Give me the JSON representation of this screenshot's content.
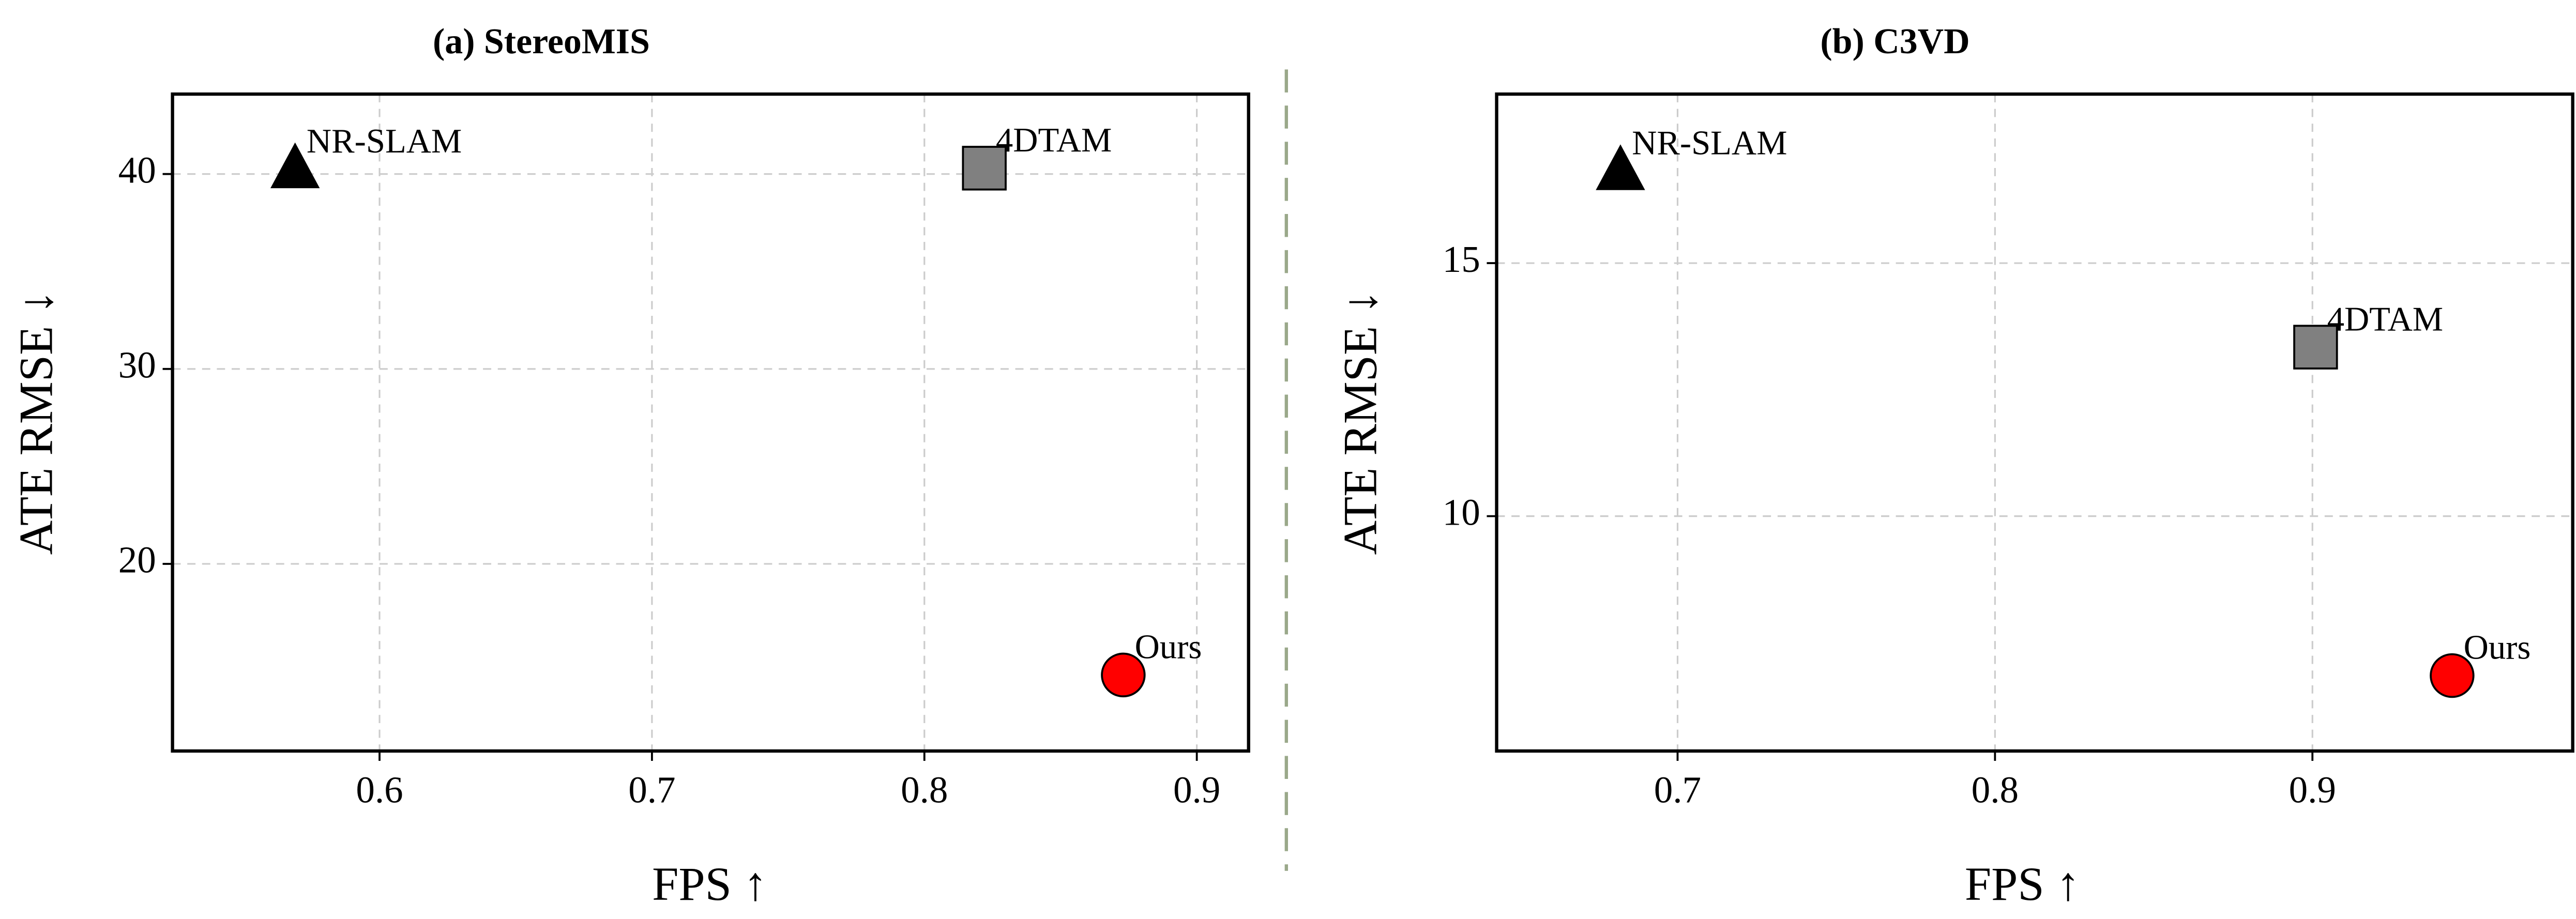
{
  "chart_data": [
    {
      "type": "scatter",
      "title": "(a) StereoMIS",
      "x_label": "FPS ↑",
      "y_label": "ATE RMSE ↓",
      "xlim": [
        0.524,
        0.919
      ],
      "xticks": [
        0.6,
        0.7,
        0.8,
        0.9
      ],
      "ylim": [
        10.4,
        44.1
      ],
      "yticks": [
        20,
        30,
        40
      ],
      "grid": true,
      "series": [
        {
          "name": "NR-SLAM",
          "color": "#000000",
          "marker": "triangle",
          "x": [
            0.569
          ],
          "values": [
            40.25
          ]
        },
        {
          "name": "4DTAM",
          "color": "#808080",
          "marker": "square",
          "x": [
            0.822
          ],
          "values": [
            40.3
          ]
        },
        {
          "name": "Ours",
          "color": "#ff0000",
          "marker": "circle",
          "x": [
            0.873
          ],
          "values": [
            14.3
          ]
        }
      ]
    },
    {
      "type": "scatter",
      "title": "(b) C3VD",
      "x_label": "FPS ↑",
      "y_label": "ATE RMSE ↓",
      "xlim": [
        0.643,
        0.982
      ],
      "xticks": [
        0.7,
        0.8,
        0.9
      ],
      "ylim": [
        5.36,
        18.34
      ],
      "yticks": [
        10,
        15
      ],
      "grid": true,
      "series": [
        {
          "name": "NR-SLAM",
          "color": "#000000",
          "marker": "triangle",
          "x": [
            0.682
          ],
          "values": [
            16.82
          ]
        },
        {
          "name": "4DTAM",
          "color": "#808080",
          "marker": "square",
          "x": [
            0.901
          ],
          "values": [
            13.34
          ]
        },
        {
          "name": "Ours",
          "color": "#ff0000",
          "marker": "circle",
          "x": [
            0.944
          ],
          "values": [
            6.85
          ]
        }
      ]
    }
  ]
}
